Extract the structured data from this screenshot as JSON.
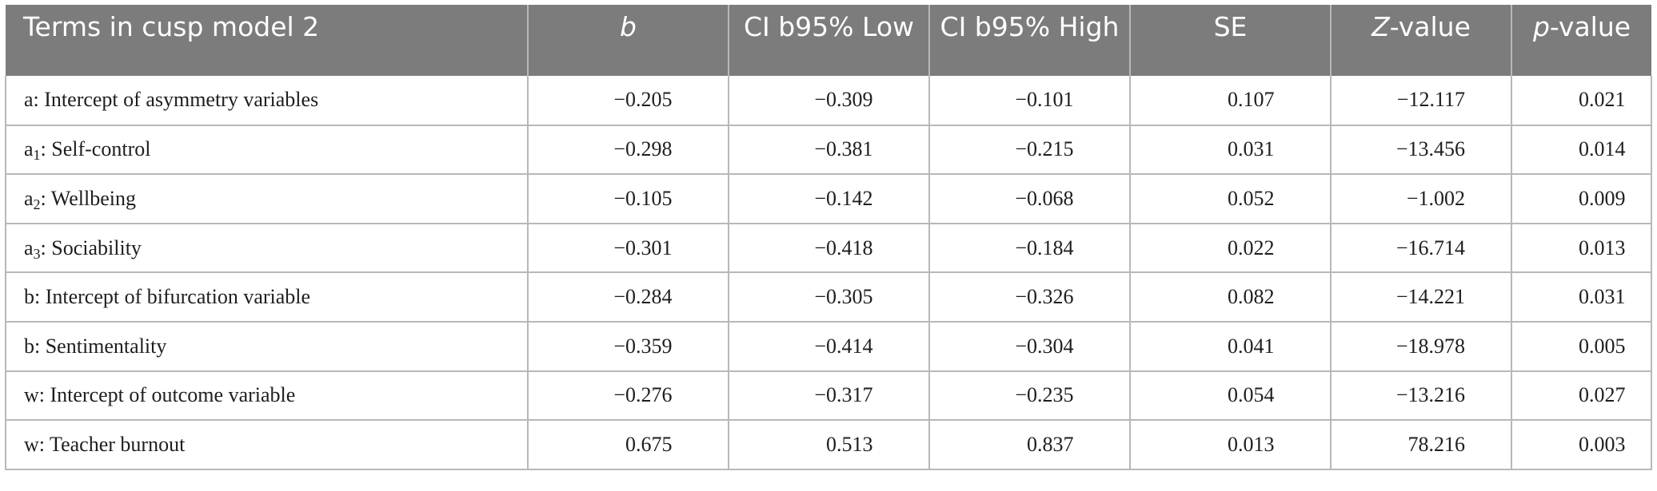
{
  "table": {
    "headers": [
      {
        "key": "term",
        "italic": "",
        "label": "Terms in cusp model 2"
      },
      {
        "key": "b",
        "italic": "b",
        "label": ""
      },
      {
        "key": "ci_low",
        "italic": "",
        "label": "CI b95% Low"
      },
      {
        "key": "ci_high",
        "italic": "",
        "label": "CI b95% High"
      },
      {
        "key": "se",
        "italic": "",
        "label": "SE"
      },
      {
        "key": "z",
        "italic": "Z",
        "label": "-value"
      },
      {
        "key": "p",
        "italic": "p",
        "label": "-value"
      }
    ],
    "rows": [
      {
        "base": "a",
        "sub": "",
        "name": ": Intercept of asymmetry variables",
        "b": "−0.205",
        "ci_low": "−0.309",
        "ci_high": "−0.101",
        "se": "0.107",
        "z": "−12.117",
        "p": "0.021"
      },
      {
        "base": "a",
        "sub": "1",
        "name": ": Self-control",
        "b": "−0.298",
        "ci_low": "−0.381",
        "ci_high": "−0.215",
        "se": "0.031",
        "z": "−13.456",
        "p": "0.014"
      },
      {
        "base": "a",
        "sub": "2",
        "name": ": Wellbeing",
        "b": "−0.105",
        "ci_low": "−0.142",
        "ci_high": "−0.068",
        "se": "0.052",
        "z": "−1.002",
        "p": "0.009"
      },
      {
        "base": "a",
        "sub": "3",
        "name": ": Sociability",
        "b": "−0.301",
        "ci_low": "−0.418",
        "ci_high": "−0.184",
        "se": "0.022",
        "z": "−16.714",
        "p": "0.013"
      },
      {
        "base": "b",
        "sub": "",
        "name": ": Intercept of bifurcation variable",
        "b": "−0.284",
        "ci_low": "−0.305",
        "ci_high": "−0.326",
        "se": "0.082",
        "z": "−14.221",
        "p": "0.031"
      },
      {
        "base": "b",
        "sub": "",
        "name": ": Sentimentality",
        "b": "−0.359",
        "ci_low": "−0.414",
        "ci_high": "−0.304",
        "se": "0.041",
        "z": "−18.978",
        "p": "0.005"
      },
      {
        "base": "w",
        "sub": "",
        "name": ": Intercept of outcome variable",
        "b": "−0.276",
        "ci_low": "−0.317",
        "ci_high": "−0.235",
        "se": "0.054",
        "z": "−13.216",
        "p": "0.027"
      },
      {
        "base": "w",
        "sub": "",
        "name": ": Teacher burnout",
        "b": "0.675",
        "ci_low": "0.513",
        "ci_high": "0.837",
        "se": "0.013",
        "z": "78.216",
        "p": "0.003"
      }
    ]
  },
  "colors": {
    "header_bg": "#7c7c7c",
    "header_text": "#ffffff",
    "grid": "#b8b8b8"
  }
}
